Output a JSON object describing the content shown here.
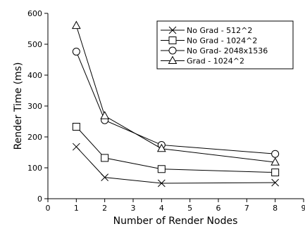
{
  "chart_data": {
    "type": "line",
    "xlabel": "Number of Render Nodes",
    "ylabel": "Render Time (ms)",
    "xlim": [
      0,
      9
    ],
    "ylim": [
      0,
      600
    ],
    "xticks": [
      "0",
      "1",
      "2",
      "3",
      "4",
      "5",
      "6",
      "7",
      "8",
      "9"
    ],
    "yticks": [
      "0",
      "100",
      "200",
      "300",
      "400",
      "500",
      "600"
    ],
    "grid": false,
    "legend_position": "top-right",
    "series": [
      {
        "name": "No Grad - 512^2",
        "marker": "cross",
        "x": [
          1,
          2,
          4,
          8
        ],
        "y": [
          168,
          69,
          50,
          52
        ]
      },
      {
        "name": "No Grad - 1024^2",
        "marker": "square",
        "x": [
          1,
          2,
          4,
          8
        ],
        "y": [
          233,
          132,
          96,
          85
        ]
      },
      {
        "name": " No Grad- 2048x1536",
        "marker": "circle",
        "x": [
          1,
          2,
          4,
          8
        ],
        "y": [
          476,
          254,
          174,
          145
        ]
      },
      {
        "name": "Grad - 1024^2",
        "marker": "triangle",
        "x": [
          1,
          2,
          4,
          8
        ],
        "y": [
          560,
          268,
          162,
          118
        ]
      }
    ]
  }
}
